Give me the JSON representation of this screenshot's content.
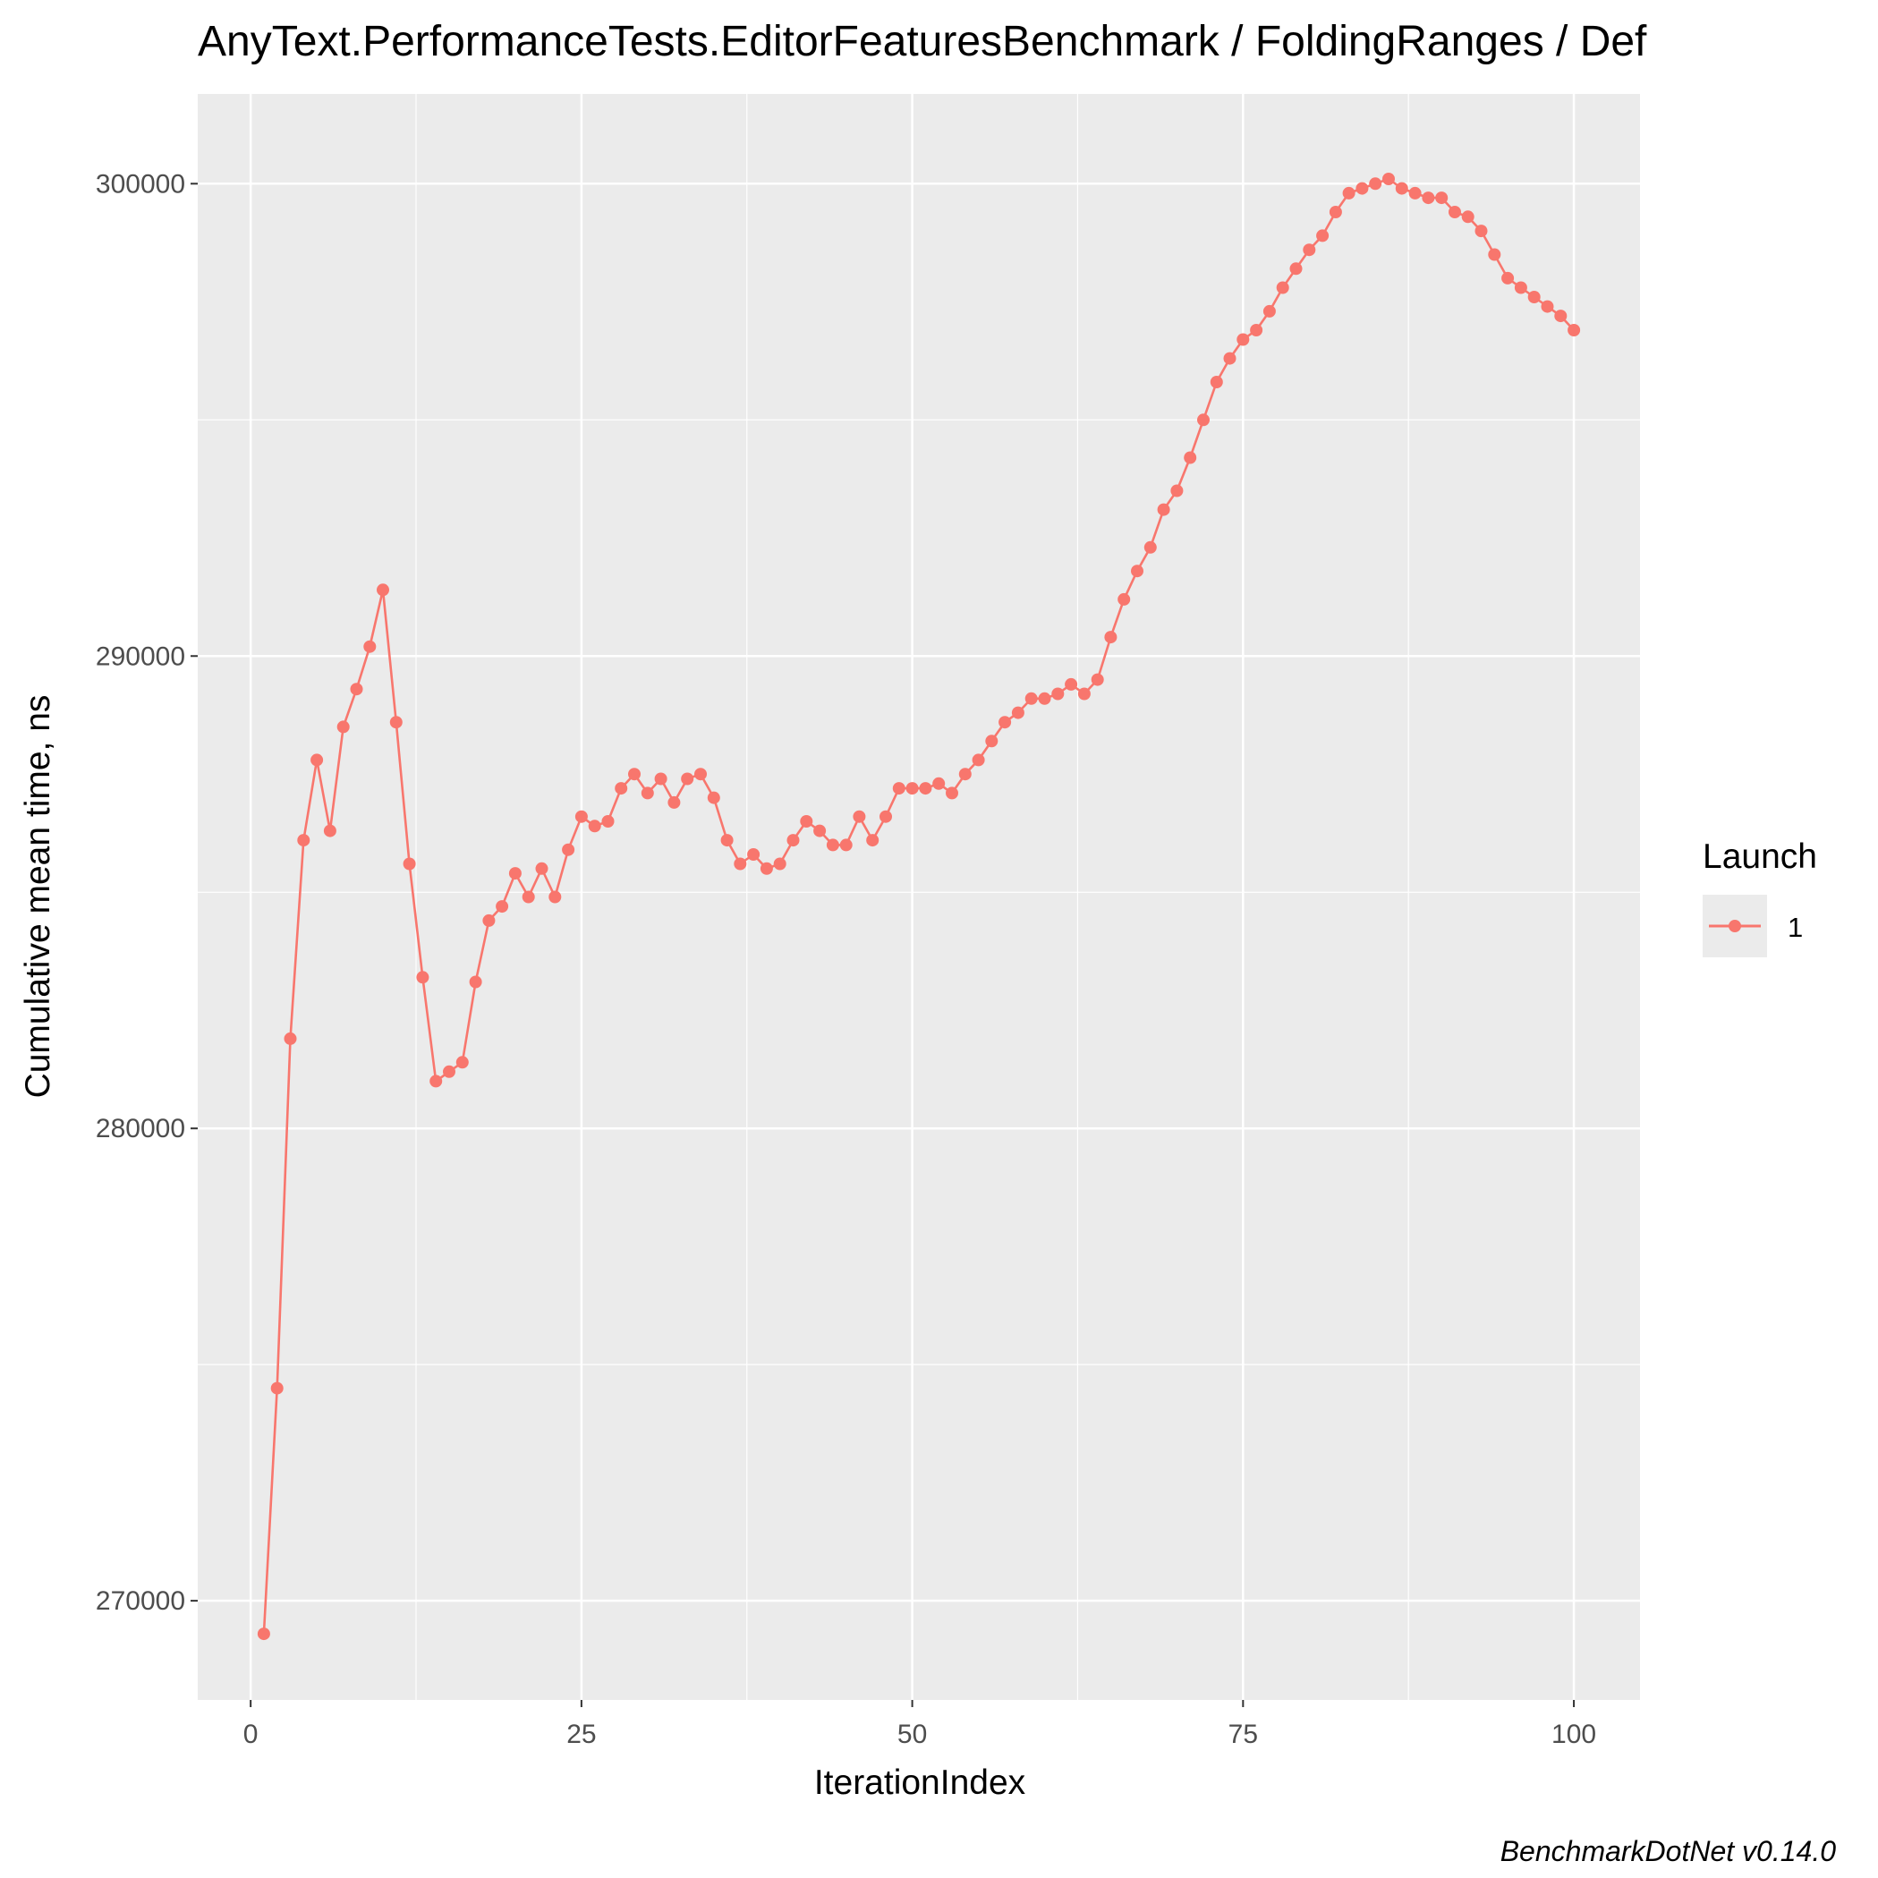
{
  "chart_data": {
    "type": "line",
    "title": "AnyText.PerformanceTests.EditorFeaturesBenchmark / FoldingRanges / Def",
    "xlabel": "IterationIndex",
    "ylabel": "Cumulative mean time, ns",
    "xlim": [
      -4,
      105
    ],
    "ylim": [
      267900,
      301900
    ],
    "x_ticks": [
      0,
      25,
      50,
      75,
      100
    ],
    "x_tick_labels": [
      "0",
      "25",
      "50",
      "75",
      "100"
    ],
    "y_ticks": [
      270000,
      280000,
      290000,
      300000
    ],
    "y_tick_labels": [
      "270000",
      "280000",
      "290000",
      "300000"
    ],
    "x_minor_ticks": [
      12.5,
      37.5,
      62.5,
      87.5
    ],
    "y_minor_ticks": [
      275000,
      285000,
      295000
    ],
    "grid": true,
    "legend": {
      "title": "Launch",
      "position": "right"
    },
    "series": [
      {
        "name": "1",
        "color": "#F8766D",
        "x": [
          1,
          2,
          3,
          4,
          5,
          6,
          7,
          8,
          9,
          10,
          11,
          12,
          13,
          14,
          15,
          16,
          17,
          18,
          19,
          20,
          21,
          22,
          23,
          24,
          25,
          26,
          27,
          28,
          29,
          30,
          31,
          32,
          33,
          34,
          35,
          36,
          37,
          38,
          39,
          40,
          41,
          42,
          43,
          44,
          45,
          46,
          47,
          48,
          49,
          50,
          51,
          52,
          53,
          54,
          55,
          56,
          57,
          58,
          59,
          60,
          61,
          62,
          63,
          64,
          65,
          66,
          67,
          68,
          69,
          70,
          71,
          72,
          73,
          74,
          75,
          76,
          77,
          78,
          79,
          80,
          81,
          82,
          83,
          84,
          85,
          86,
          87,
          88,
          89,
          90,
          91,
          92,
          93,
          94,
          95,
          96,
          97,
          98,
          99,
          100
        ],
        "y": [
          269300,
          274500,
          281900,
          286100,
          287800,
          286300,
          288500,
          289300,
          290200,
          291400,
          288600,
          285600,
          283200,
          281000,
          281200,
          281400,
          283100,
          284400,
          284700,
          285400,
          284900,
          285500,
          284900,
          285900,
          286600,
          286400,
          286500,
          287200,
          287500,
          287100,
          287400,
          286900,
          287400,
          287500,
          287000,
          286100,
          285600,
          285800,
          285500,
          285600,
          286100,
          286500,
          286300,
          286000,
          286000,
          286600,
          286100,
          286600,
          287200,
          287200,
          287200,
          287300,
          287100,
          287500,
          287800,
          288200,
          288600,
          288800,
          289100,
          289100,
          289200,
          289400,
          289200,
          289500,
          290400,
          291200,
          291800,
          292300,
          293100,
          293500,
          294200,
          295000,
          295800,
          296300,
          296700,
          296900,
          297300,
          297800,
          298200,
          298600,
          298900,
          299400,
          299800,
          299900,
          300000,
          300100,
          299900,
          299800,
          299700,
          299700,
          299400,
          299300,
          299000,
          298500,
          298000,
          297800,
          297600,
          297400,
          297200,
          296900
        ]
      }
    ],
    "caption": "BenchmarkDotNet v0.14.0"
  }
}
